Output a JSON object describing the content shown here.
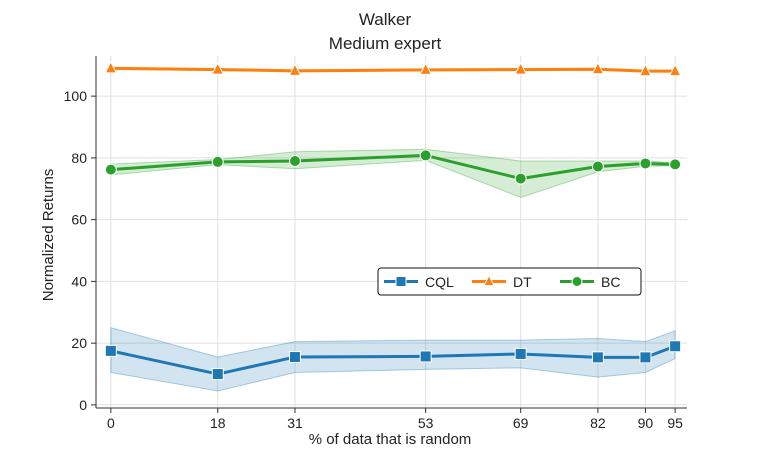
{
  "chart_data": {
    "type": "line",
    "title_lines": [
      "Walker",
      "Medium expert"
    ],
    "xlabel": "% of data that is random",
    "ylabel": "Normalized Returns",
    "x": [
      0,
      18,
      31,
      53,
      69,
      82,
      90,
      95
    ],
    "xlim": [
      -2.5,
      97
    ],
    "ylim": [
      -1,
      113
    ],
    "yticks": [
      0,
      20,
      40,
      60,
      80,
      100
    ],
    "grid": true,
    "legend_position": "center-right",
    "series": [
      {
        "name": "CQL",
        "marker": "square",
        "color": "#1f77b4",
        "values": [
          17.5,
          10,
          15.5,
          15.7,
          16.5,
          15.4,
          15.4,
          19
        ],
        "band_low": [
          10.5,
          4.5,
          10.5,
          11.5,
          12,
          9,
          10.5,
          15
        ],
        "band_high": [
          25,
          15.5,
          20.5,
          21,
          21,
          21.5,
          20.5,
          24
        ]
      },
      {
        "name": "DT",
        "marker": "triangle",
        "color": "#ff7f0e",
        "values": [
          109,
          108.6,
          108.2,
          108.5,
          108.6,
          108.7,
          108.1,
          108.1
        ],
        "band_low": [
          108.7,
          108.3,
          107.9,
          108.2,
          108.3,
          108.4,
          107.8,
          107.8
        ],
        "band_high": [
          109.3,
          108.9,
          108.5,
          108.8,
          108.9,
          109,
          108.4,
          108.4
        ]
      },
      {
        "name": "BC",
        "marker": "circle",
        "color": "#2ca02c",
        "values": [
          76.2,
          78.7,
          79,
          80.8,
          73.3,
          77.2,
          78.2,
          77.9
        ],
        "band_low": [
          74.5,
          77.8,
          76.5,
          79.2,
          67.2,
          75.5,
          77.3,
          77.4
        ],
        "band_high": [
          78,
          79.5,
          82,
          82.8,
          79,
          79,
          79,
          78.4
        ]
      }
    ]
  }
}
